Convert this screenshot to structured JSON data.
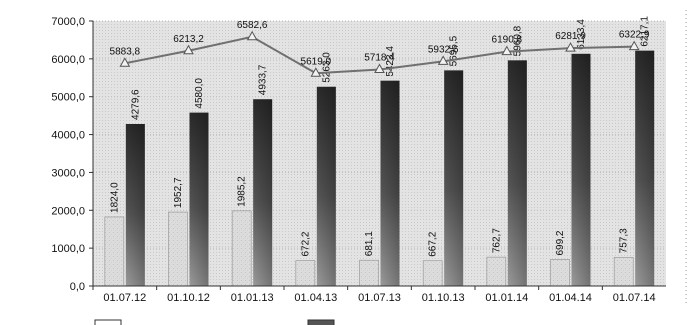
{
  "chart_data": {
    "type": "bar",
    "categories": [
      "01.07.12",
      "01.10.12",
      "01.01.13",
      "01.04.13",
      "01.07.13",
      "01.10.13",
      "01.01.14",
      "01.04.14",
      "01.07.14"
    ],
    "ylim": [
      0,
      7000
    ],
    "yticks": [
      "0,0",
      "1000,0",
      "2000,0",
      "3000,0",
      "4000,0",
      "5000,0",
      "6000,0",
      "7000,0"
    ],
    "grid": true,
    "series": [
      {
        "type": "bar",
        "color": "#d9d9d9",
        "values": [
          1824.0,
          1952.7,
          1985.2,
          672.2,
          681.1,
          667.2,
          762.7,
          699.2,
          757.3
        ],
        "labels": [
          "1824,0",
          "1952,7",
          "1985,2",
          "672,2",
          "681,1",
          "667,2",
          "762,7",
          "699,2",
          "757,3"
        ]
      },
      {
        "type": "bar",
        "color": "#3a3a3a",
        "values": [
          4279.6,
          4580.0,
          4933.7,
          5263.0,
          5423.4,
          5695.5,
          5960.8,
          6133.4,
          6217.1
        ],
        "labels": [
          "4279,6",
          "4580,0",
          "4933,7",
          "5263,0",
          "5423,4",
          "5695,5",
          "5960,8",
          "6133,4",
          "6217,1"
        ]
      },
      {
        "type": "line",
        "color": "#707070",
        "values": [
          5883.8,
          6213.2,
          6582.6,
          5619.0,
          5718.4,
          5932.6,
          6190.8,
          6281.9,
          6322.9
        ],
        "labels": [
          "5883,8",
          "6213,2",
          "6582,6",
          "5619,0",
          "5718,4",
          "5932,6",
          "6190,8",
          "6281,9",
          "6322,9"
        ]
      }
    ]
  }
}
